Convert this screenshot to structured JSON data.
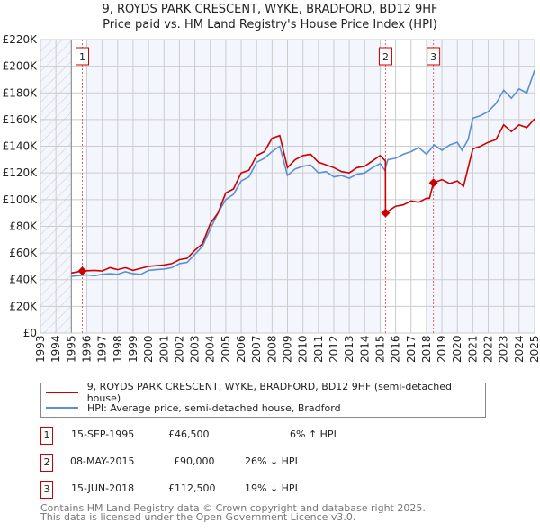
{
  "title_line1": "9, ROYDS PARK CRESCENT, WYKE, BRADFORD, BD12 9HF",
  "title_line2": "Price paid vs. HM Land Registry's House Price Index (HPI)",
  "chart_data": {
    "type": "line",
    "title": "9, ROYDS PARK CRESCENT, WYKE, BRADFORD, BD12 9HF — Price paid vs. HM Land Registry's House Price Index (HPI)",
    "xlim": [
      1993,
      2025
    ],
    "ylim": [
      0,
      220000
    ],
    "x_ticks": [
      "1993",
      "1994",
      "1995",
      "1996",
      "1997",
      "1998",
      "1999",
      "2000",
      "2001",
      "2002",
      "2003",
      "2004",
      "2005",
      "2006",
      "2007",
      "2008",
      "2009",
      "2010",
      "2011",
      "2012",
      "2013",
      "2014",
      "2015",
      "2016",
      "2017",
      "2018",
      "2019",
      "2020",
      "2021",
      "2022",
      "2023",
      "2024",
      "2025"
    ],
    "y_ticks": [
      {
        "v": 0,
        "label": "£0"
      },
      {
        "v": 20000,
        "label": "£20K"
      },
      {
        "v": 40000,
        "label": "£40K"
      },
      {
        "v": 60000,
        "label": "£60K"
      },
      {
        "v": 80000,
        "label": "£80K"
      },
      {
        "v": 100000,
        "label": "£100K"
      },
      {
        "v": 120000,
        "label": "£120K"
      },
      {
        "v": 140000,
        "label": "£140K"
      },
      {
        "v": 160000,
        "label": "£160K"
      },
      {
        "v": 180000,
        "label": "£180K"
      },
      {
        "v": 200000,
        "label": "£200K"
      },
      {
        "v": 220000,
        "label": "£220K"
      }
    ],
    "grid": true,
    "hatched_range": [
      1993,
      1995
    ],
    "series": [
      {
        "name": "9, ROYDS PARK CRESCENT, WYKE, BRADFORD, BD12 9HF (semi-detached house)",
        "color": "#cc0000",
        "x": [
          1995,
          1995.7,
          1996.5,
          1997,
          1997.5,
          1998,
          1998.5,
          1999,
          1999.5,
          2000,
          2000.5,
          2001,
          2001.5,
          2002,
          2002.5,
          2003,
          2003.5,
          2004,
          2004.5,
          2005,
          2005.5,
          2006,
          2006.5,
          2007,
          2007.5,
          2008,
          2008.5,
          2009,
          2009.5,
          2010,
          2010.5,
          2011,
          2011.5,
          2012,
          2012.5,
          2013,
          2013.5,
          2014,
          2014.5,
          2015,
          2015.34,
          2015.35,
          2016,
          2016.5,
          2017,
          2017.5,
          2018,
          2018.2,
          2018.45,
          2019,
          2019.5,
          2020,
          2020.4,
          2020.7,
          2021,
          2021.5,
          2022,
          2022.5,
          2023,
          2023.5,
          2024,
          2024.5,
          2025
        ],
        "y": [
          45000,
          46500,
          47000,
          46500,
          49000,
          47500,
          49000,
          47000,
          48500,
          50000,
          50500,
          51000,
          52000,
          55000,
          56000,
          62000,
          67000,
          82000,
          90000,
          105000,
          108000,
          120000,
          122000,
          133000,
          136000,
          146000,
          148000,
          124000,
          130000,
          133000,
          134000,
          128000,
          126000,
          124000,
          121000,
          120000,
          124000,
          125000,
          129000,
          133000,
          129000,
          90000,
          95000,
          96000,
          99000,
          98000,
          101000,
          101000,
          112500,
          115000,
          112000,
          114000,
          110000,
          124000,
          138000,
          140000,
          143000,
          145000,
          156000,
          151000,
          156000,
          154000,
          160500
        ]
      },
      {
        "name": "HPI: Average price, semi-detached house, Bradford",
        "color": "#5b8fd4",
        "x": [
          1995,
          1996,
          1996.5,
          1997,
          1997.5,
          1998,
          1998.5,
          1999,
          1999.5,
          2000,
          2000.5,
          2001,
          2001.5,
          2002,
          2002.5,
          2003,
          2003.5,
          2004,
          2004.5,
          2005,
          2005.5,
          2006,
          2006.5,
          2007,
          2007.5,
          2008,
          2008.5,
          2009,
          2009.5,
          2010,
          2010.5,
          2011,
          2011.5,
          2012,
          2012.5,
          2013,
          2013.5,
          2014,
          2014.5,
          2015,
          2015.3,
          2015.5,
          2016,
          2016.5,
          2017,
          2017.5,
          2018,
          2018.5,
          2019,
          2019.5,
          2020,
          2020.3,
          2020.7,
          2021,
          2021.5,
          2022,
          2022.5,
          2023,
          2023.5,
          2024,
          2024.5,
          2025
        ],
        "y": [
          42500,
          43500,
          43000,
          44000,
          44500,
          44000,
          46000,
          44500,
          44000,
          47000,
          47500,
          48000,
          49000,
          52000,
          53000,
          59000,
          65000,
          78000,
          90000,
          100000,
          104000,
          114000,
          117000,
          128000,
          131000,
          136000,
          140000,
          118000,
          123000,
          125000,
          126000,
          120000,
          121000,
          117000,
          118000,
          116000,
          119000,
          120000,
          124000,
          127000,
          122000,
          130000,
          131000,
          134000,
          136000,
          139000,
          134000,
          141000,
          137000,
          141000,
          143000,
          137000,
          145000,
          161000,
          163000,
          166000,
          172000,
          182000,
          176000,
          183000,
          180000,
          197000
        ]
      }
    ],
    "sales": [
      {
        "label": "1",
        "x": 1995.71,
        "y": 46500
      },
      {
        "label": "2",
        "x": 2015.35,
        "y": 90000
      },
      {
        "label": "3",
        "x": 2018.45,
        "y": 112500
      }
    ]
  },
  "legend": {
    "property": "9, ROYDS PARK CRESCENT, WYKE, BRADFORD, BD12 9HF (semi-detached house)",
    "hpi": "HPI: Average price, semi-detached house, Bradford"
  },
  "transactions": [
    {
      "num": "1",
      "date": "15-SEP-1995",
      "price": "£46,500",
      "hpi": "6% ↑ HPI"
    },
    {
      "num": "2",
      "date": "08-MAY-2015",
      "price": "£90,000",
      "hpi": "26% ↓ HPI"
    },
    {
      "num": "3",
      "date": "15-JUN-2018",
      "price": "£112,500",
      "hpi": "19% ↓ HPI"
    }
  ],
  "footer": {
    "line1": "Contains HM Land Registry data © Crown copyright and database right 2025.",
    "line2": "This data is licensed under the Open Government Licence v3.0."
  }
}
